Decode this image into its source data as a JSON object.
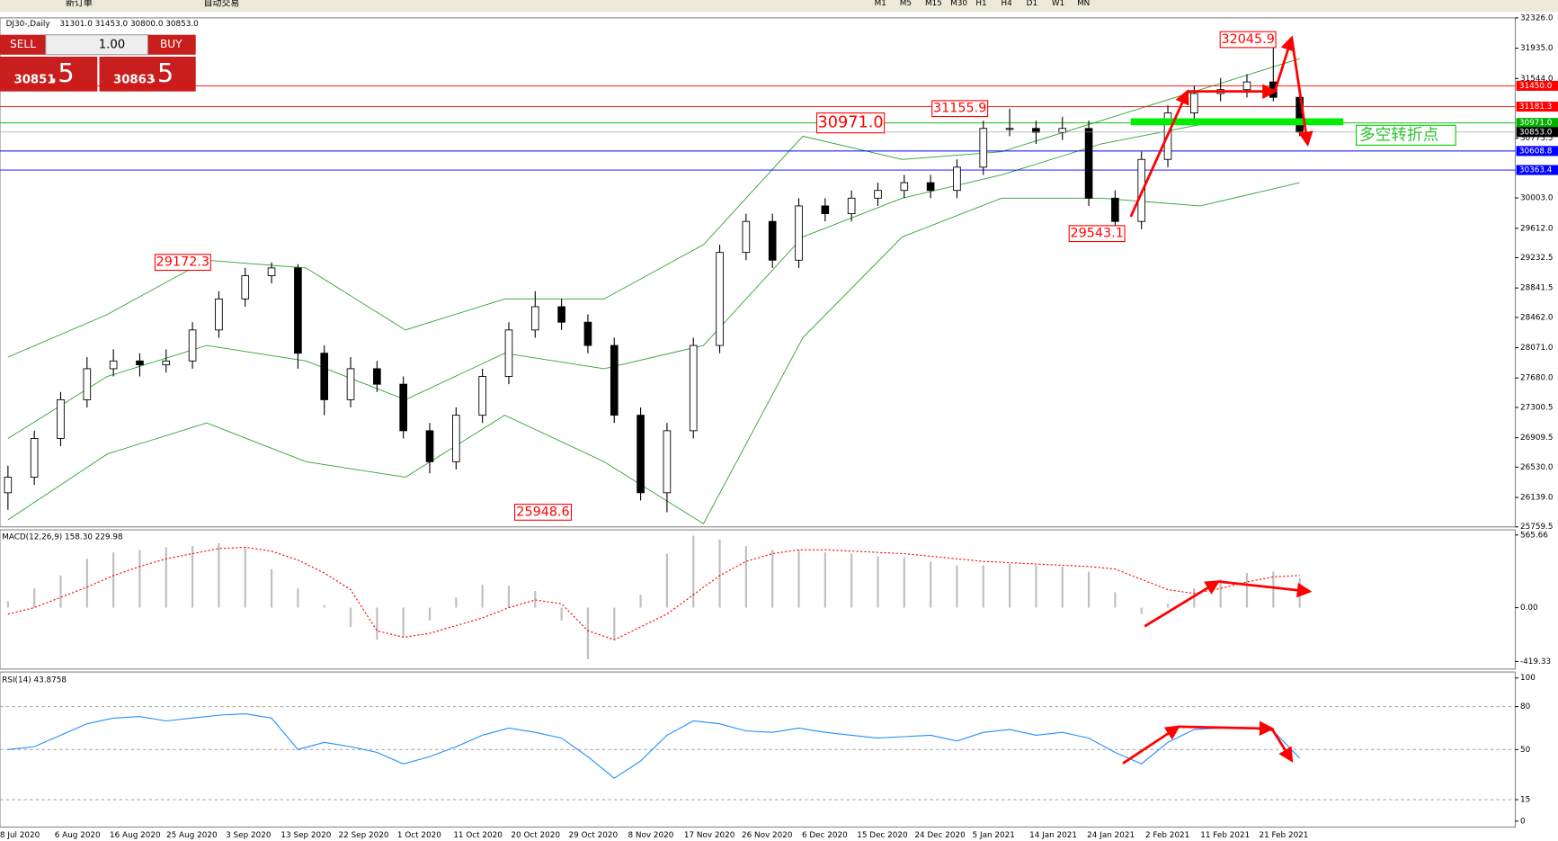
{
  "toolbar": {
    "new_order": "新订单",
    "auto_trading": "自动交易",
    "timeframes": [
      "M1",
      "M5",
      "M15",
      "M30",
      "H1",
      "H4",
      "D1",
      "W1",
      "MN"
    ]
  },
  "trade_panel": {
    "sell": "SELL",
    "buy": "BUY",
    "lots": "1.00",
    "sell_price_main": "30851",
    "sell_price_pips": ".5",
    "buy_price_main": "30863",
    "buy_price_pips": ".5"
  },
  "main_chart": {
    "symbol": "DJ30-,Daily",
    "ohlc": "31301.0 31453.0 30800.0 30853.0",
    "ylim": [
      25759.5,
      32326
    ],
    "yticks": [
      {
        "value": 32326,
        "label": "32326.0"
      },
      {
        "value": 31935,
        "label": "31935.0"
      },
      {
        "value": 31544,
        "label": "31544.0"
      },
      {
        "value": 30773.5,
        "label": "30773.5"
      },
      {
        "value": 30003,
        "label": "30003.0"
      },
      {
        "value": 29612,
        "label": "29612.0"
      },
      {
        "value": 29232.5,
        "label": "29232.5"
      },
      {
        "value": 28841.5,
        "label": "28841.5"
      },
      {
        "value": 28462,
        "label": "28462.0"
      },
      {
        "value": 28071,
        "label": "28071.0"
      },
      {
        "value": 27680,
        "label": "27680.0"
      },
      {
        "value": 27300.5,
        "label": "27300.5"
      },
      {
        "value": 26909.5,
        "label": "26909.5"
      },
      {
        "value": 26530,
        "label": "26530.0"
      },
      {
        "value": 26139,
        "label": "26139.0"
      },
      {
        "value": 25759.5,
        "label": "25759.5"
      }
    ],
    "candles": [
      [
        26200,
        26550,
        25980,
        26400
      ],
      [
        26400,
        27000,
        26300,
        26900
      ],
      [
        26900,
        27500,
        26800,
        27400
      ],
      [
        27400,
        27950,
        27300,
        27800
      ],
      [
        27800,
        28050,
        27700,
        27900
      ],
      [
        27900,
        28000,
        27700,
        27850
      ],
      [
        27850,
        28050,
        27750,
        27900
      ],
      [
        27900,
        28400,
        27800,
        28300
      ],
      [
        28300,
        28800,
        28200,
        28700
      ],
      [
        28700,
        29100,
        28600,
        29000
      ],
      [
        29000,
        29172.3,
        28900,
        29100
      ],
      [
        29100,
        29150,
        27800,
        28000
      ],
      [
        28000,
        28100,
        27200,
        27400
      ],
      [
        27400,
        27950,
        27300,
        27800
      ],
      [
        27800,
        27900,
        27500,
        27600
      ],
      [
        27600,
        27700,
        26900,
        27000
      ],
      [
        27000,
        27100,
        26450,
        26600
      ],
      [
        26600,
        27300,
        26500,
        27200
      ],
      [
        27200,
        27800,
        27100,
        27700
      ],
      [
        27700,
        28400,
        27600,
        28300
      ],
      [
        28300,
        28800,
        28200,
        28600
      ],
      [
        28600,
        28700,
        28300,
        28400
      ],
      [
        28400,
        28500,
        28000,
        28100
      ],
      [
        28100,
        28200,
        27100,
        27200
      ],
      [
        27200,
        27300,
        26100,
        26200
      ],
      [
        26200,
        27100,
        25948.6,
        27000
      ],
      [
        27000,
        28200,
        26900,
        28100
      ],
      [
        28100,
        29400,
        28000,
        29300
      ],
      [
        29300,
        29800,
        29200,
        29700
      ],
      [
        29700,
        29800,
        29100,
        29200
      ],
      [
        29200,
        30000,
        29100,
        29900
      ],
      [
        29900,
        30000,
        29700,
        29800
      ],
      [
        29800,
        30100,
        29700,
        30000
      ],
      [
        30000,
        30200,
        29900,
        30100
      ],
      [
        30100,
        30300,
        30000,
        30200
      ],
      [
        30200,
        30300,
        30000,
        30100
      ],
      [
        30100,
        30500,
        30000,
        30400
      ],
      [
        30400,
        31000,
        30300,
        30900
      ],
      [
        30900,
        31155.9,
        30800,
        30900
      ],
      [
        30900,
        31000,
        30700,
        30850
      ],
      [
        30850,
        31050,
        30750,
        30900
      ],
      [
        30900,
        31000,
        29900,
        30000
      ],
      [
        30000,
        30100,
        29543.1,
        29700
      ],
      [
        29700,
        30600,
        29600,
        30500
      ],
      [
        30500,
        31200,
        30400,
        31100
      ],
      [
        31100,
        31450,
        31000,
        31350
      ],
      [
        31350,
        31550,
        31250,
        31400
      ],
      [
        31400,
        31600,
        31300,
        31500
      ],
      [
        31500,
        32045.9,
        31250,
        31301
      ],
      [
        31301,
        31453,
        30800,
        30853
      ]
    ],
    "bands": {
      "upper": [
        27950,
        28500,
        29200,
        29100,
        28300,
        28700,
        28700,
        29400,
        30800,
        30500,
        30600,
        31000,
        31400,
        31800
      ],
      "middle": [
        26900,
        27700,
        28100,
        27900,
        27400,
        28000,
        27800,
        28100,
        29500,
        30000,
        30300,
        30700,
        30950,
        30950
      ],
      "lower": [
        25850,
        26700,
        27100,
        26600,
        26400,
        27200,
        26600,
        25800,
        28200,
        29500,
        30000,
        30000,
        29900,
        30200
      ]
    },
    "levels": [
      {
        "value": 31450,
        "label": "31450.0",
        "color": "#ff0000"
      },
      {
        "value": 31181.3,
        "label": "31181.3",
        "color": "#ff0000"
      },
      {
        "value": 30971,
        "label": "30971.0",
        "color": "#00b000"
      },
      {
        "value": 30608.8,
        "label": "30608.8",
        "color": "#0000ff"
      },
      {
        "value": 30363.4,
        "label": "30363.4",
        "color": "#0000ff"
      }
    ],
    "current": {
      "value": 30853,
      "label": "30853.0"
    },
    "annotations": [
      {
        "value": 32045.9,
        "label": "32045.9"
      },
      {
        "value": 31155.9,
        "label": "31155.9"
      },
      {
        "value": 30971,
        "label": "30971.0"
      },
      {
        "value": 29543.1,
        "label": "29543.1"
      },
      {
        "value": 29172.3,
        "label": "29172.3"
      },
      {
        "value": 25948.6,
        "label": "25948.6"
      }
    ],
    "note": "多空转折点"
  },
  "macd": {
    "label": "MACD(12,26,9) 158.30 229.98",
    "ylim": [
      -470,
      590
    ],
    "yticks": [
      {
        "value": 565.66,
        "label": "565.66"
      },
      {
        "value": 0,
        "label": "0.00"
      },
      {
        "value": -419.33,
        "label": "-419.33"
      }
    ],
    "hist": [
      50,
      150,
      250,
      380,
      430,
      450,
      470,
      480,
      500,
      470,
      300,
      150,
      20,
      -150,
      -250,
      -230,
      -100,
      80,
      180,
      170,
      130,
      -100,
      -400,
      -250,
      100,
      420,
      560,
      530,
      480,
      450,
      450,
      430,
      420,
      400,
      390,
      360,
      330,
      330,
      340,
      330,
      320,
      280,
      120,
      -50,
      30,
      150,
      220,
      270,
      280,
      230
    ],
    "signal": [
      -50,
      0,
      80,
      160,
      250,
      320,
      380,
      420,
      460,
      470,
      440,
      370,
      270,
      140,
      -180,
      -230,
      -200,
      -140,
      -80,
      0,
      60,
      30,
      -180,
      -250,
      -150,
      -50,
      100,
      250,
      360,
      420,
      450,
      450,
      440,
      430,
      420,
      400,
      380,
      360,
      350,
      340,
      330,
      320,
      300,
      220,
      140,
      110,
      150,
      200,
      240,
      250
    ]
  },
  "rsi": {
    "label": "RSI(14) 43.8758",
    "ylim": [
      0,
      100
    ],
    "yticks": [
      100,
      80,
      50,
      15,
      0
    ],
    "levels": [
      80,
      50,
      15
    ],
    "values": [
      50,
      52,
      60,
      68,
      72,
      73,
      70,
      72,
      74,
      75,
      72,
      50,
      55,
      52,
      48,
      40,
      45,
      52,
      60,
      65,
      62,
      58,
      45,
      30,
      42,
      60,
      70,
      68,
      63,
      62,
      65,
      62,
      60,
      58,
      59,
      60,
      56,
      62,
      64,
      60,
      62,
      58,
      48,
      40,
      55,
      64,
      65,
      65,
      63,
      44
    ]
  },
  "dates": [
    "8 Jul 2020",
    "6 Aug 2020",
    "16 Aug 2020",
    "25 Aug 2020",
    "3 Sep 2020",
    "13 Sep 2020",
    "22 Sep 2020",
    "1 Oct 2020",
    "11 Oct 2020",
    "20 Oct 2020",
    "29 Oct 2020",
    "8 Nov 2020",
    "17 Nov 2020",
    "26 Nov 2020",
    "6 Dec 2020",
    "15 Dec 2020",
    "24 Dec 2020",
    "5 Jan 2021",
    "14 Jan 2021",
    "24 Jan 2021",
    "2 Feb 2021",
    "11 Feb 2021",
    "21 Feb 2021"
  ]
}
